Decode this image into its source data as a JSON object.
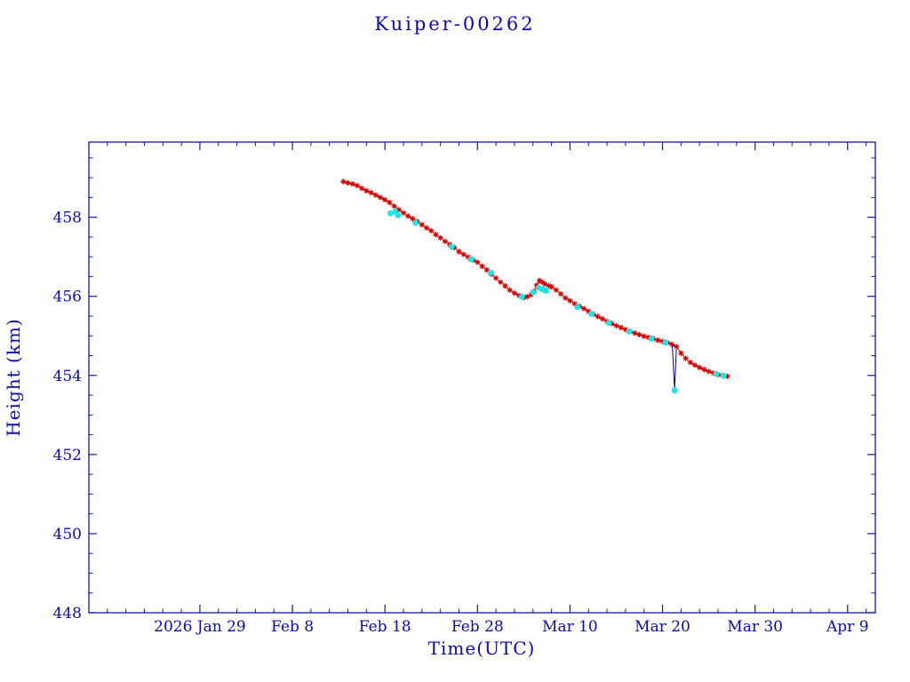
{
  "window": {
    "background": "#ffffff"
  },
  "chart_data": {
    "type": "scatter",
    "title": "Kuiper-00262",
    "xlabel": "Time(UTC)",
    "ylabel": "Height (km)",
    "frame_color": "#1515a8",
    "text_color": "#0b0bA8",
    "x_unit": "day_of_year_2026",
    "xlim": [
      17,
      102
    ],
    "ylim": [
      448,
      459.9
    ],
    "y_ticks": [
      {
        "value": 448,
        "label": "448"
      },
      {
        "value": 450,
        "label": "450"
      },
      {
        "value": 452,
        "label": "452"
      },
      {
        "value": 454,
        "label": "454"
      },
      {
        "value": 456,
        "label": "456"
      },
      {
        "value": 458,
        "label": "458"
      }
    ],
    "x_ticks": [
      {
        "day": 29,
        "label": "2026 Jan 29"
      },
      {
        "day": 39,
        "label": "Feb 8"
      },
      {
        "day": 49,
        "label": "Feb 18"
      },
      {
        "day": 59,
        "label": "Feb 28"
      },
      {
        "day": 69,
        "label": "Mar 10"
      },
      {
        "day": 79,
        "label": "Mar 20"
      },
      {
        "day": 89,
        "label": "Mar 30"
      },
      {
        "day": 99,
        "label": "Apr 9"
      }
    ],
    "minor_tick_step_x_days": 2,
    "minor_tick_step_y_km": 0.5,
    "series": [
      {
        "name": "height-track-red-asterisks",
        "type": "asterisk",
        "color": "#d40000",
        "connect": true,
        "points": [
          [
            44.5,
            458.9
          ],
          [
            45,
            458.87
          ],
          [
            45.5,
            458.84
          ],
          [
            46,
            458.8
          ],
          [
            46.5,
            458.73
          ],
          [
            47,
            458.67
          ],
          [
            47.5,
            458.62
          ],
          [
            48,
            458.56
          ],
          [
            48.5,
            458.5
          ],
          [
            49,
            458.44
          ],
          [
            49.5,
            458.37
          ],
          [
            50,
            458.28
          ],
          [
            50.5,
            458.19
          ],
          [
            51,
            458.11
          ],
          [
            51.5,
            458.03
          ],
          [
            52,
            457.96
          ],
          [
            52.5,
            457.89
          ],
          [
            53,
            457.81
          ],
          [
            53.5,
            457.73
          ],
          [
            54,
            457.66
          ],
          [
            54.5,
            457.56
          ],
          [
            55,
            457.48
          ],
          [
            55.5,
            457.39
          ],
          [
            56,
            457.31
          ],
          [
            56.5,
            457.23
          ],
          [
            57,
            457.13
          ],
          [
            57.5,
            457.06
          ],
          [
            58,
            456.99
          ],
          [
            58.5,
            456.92
          ],
          [
            59,
            456.86
          ],
          [
            59.5,
            456.76
          ],
          [
            60,
            456.67
          ],
          [
            60.5,
            456.56
          ],
          [
            61,
            456.46
          ],
          [
            61.5,
            456.36
          ],
          [
            62,
            456.26
          ],
          [
            62.5,
            456.16
          ],
          [
            63,
            456.08
          ],
          [
            63.5,
            456.02
          ],
          [
            64,
            455.97
          ],
          [
            64.4,
            455.99
          ],
          [
            64.8,
            456.04
          ],
          [
            65.1,
            456.12
          ],
          [
            65.4,
            456.28
          ],
          [
            65.7,
            456.4
          ],
          [
            66,
            456.36
          ],
          [
            66.3,
            456.31
          ],
          [
            66.7,
            456.27
          ],
          [
            67,
            456.24
          ],
          [
            67.5,
            456.16
          ],
          [
            68,
            456.06
          ],
          [
            68.5,
            455.96
          ],
          [
            69,
            455.89
          ],
          [
            69.5,
            455.81
          ],
          [
            70,
            455.75
          ],
          [
            70.5,
            455.69
          ],
          [
            71,
            455.62
          ],
          [
            71.5,
            455.55
          ],
          [
            72,
            455.49
          ],
          [
            72.5,
            455.43
          ],
          [
            73,
            455.37
          ],
          [
            73.5,
            455.31
          ],
          [
            74,
            455.26
          ],
          [
            74.5,
            455.21
          ],
          [
            75,
            455.16
          ],
          [
            75.5,
            455.11
          ],
          [
            76,
            455.07
          ],
          [
            76.5,
            455.03
          ],
          [
            77,
            454.99
          ],
          [
            77.5,
            454.96
          ],
          [
            78,
            454.93
          ],
          [
            78.5,
            454.89
          ],
          [
            79,
            454.86
          ],
          [
            79.5,
            454.83
          ],
          [
            80,
            454.79
          ],
          [
            80.5,
            454.73
          ],
          [
            81,
            454.56
          ],
          [
            81.5,
            454.43
          ],
          [
            82,
            454.33
          ],
          [
            82.5,
            454.26
          ],
          [
            83,
            454.2
          ],
          [
            83.5,
            454.15
          ],
          [
            84,
            454.1
          ],
          [
            84.5,
            454.06
          ],
          [
            85,
            454.02
          ],
          [
            85.5,
            454.0
          ],
          [
            86,
            453.98
          ]
        ]
      },
      {
        "name": "dropout-spike-line",
        "type": "line",
        "color": "#000080",
        "points": [
          [
            80.05,
            454.77
          ],
          [
            80.3,
            453.65
          ],
          [
            80.5,
            454.66
          ]
        ]
      },
      {
        "name": "height-secondary-cyan-dots",
        "type": "dot",
        "color": "#1fe4e4",
        "points": [
          [
            49.6,
            458.1
          ],
          [
            50.1,
            458.14
          ],
          [
            50.4,
            458.05
          ],
          [
            52.3,
            457.86
          ],
          [
            56.2,
            457.26
          ],
          [
            58.3,
            456.94
          ],
          [
            60.4,
            456.6
          ],
          [
            63.8,
            455.99
          ],
          [
            65.0,
            456.1
          ],
          [
            65.6,
            456.22
          ],
          [
            66.0,
            456.18
          ],
          [
            66.4,
            456.14
          ],
          [
            69.8,
            455.73
          ],
          [
            71.3,
            455.56
          ],
          [
            73.2,
            455.33
          ],
          [
            75.4,
            455.11
          ],
          [
            77.8,
            454.93
          ],
          [
            79.3,
            454.83
          ],
          [
            80.3,
            453.62
          ],
          [
            84.8,
            454.04
          ],
          [
            85.6,
            453.99
          ]
        ]
      }
    ]
  }
}
